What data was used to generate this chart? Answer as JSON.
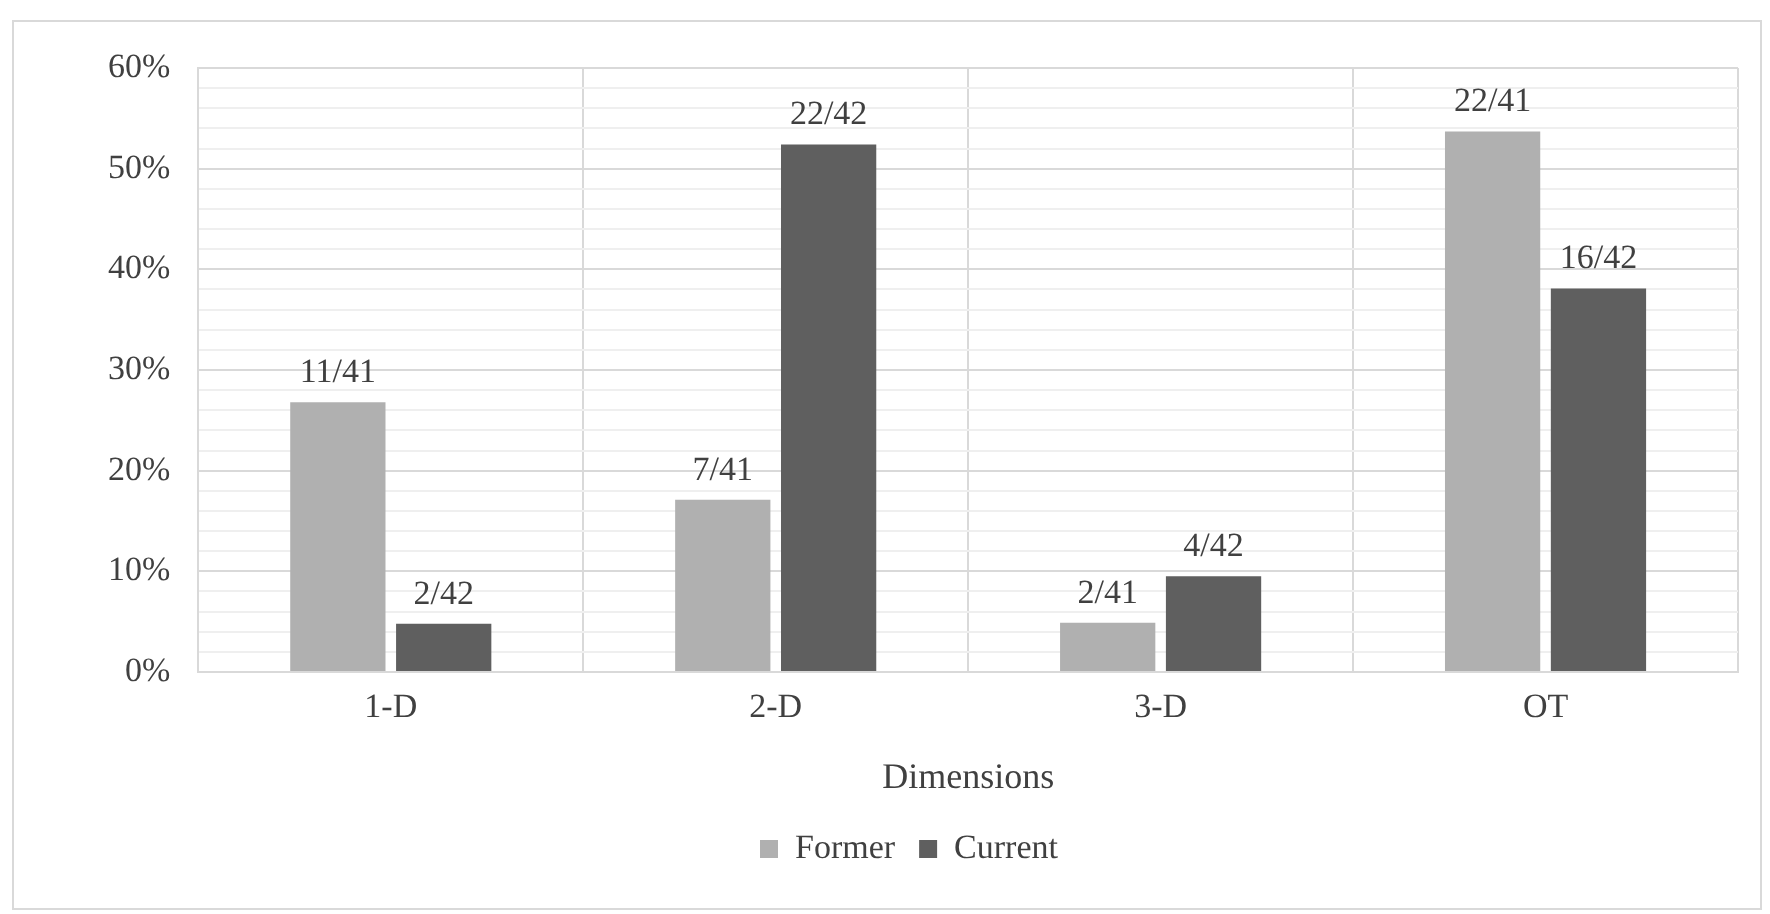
{
  "chart_data": {
    "type": "bar",
    "xlabel": "Dimensions",
    "categories": [
      "1-D",
      "2-D",
      "3-D",
      "OT"
    ],
    "series": [
      {
        "name": "Former",
        "color": "#b0b0b0",
        "values": [
          26.8,
          17.1,
          4.9,
          53.7
        ],
        "value_labels": [
          "11/41",
          "7/41",
          "2/41",
          "22/41"
        ]
      },
      {
        "name": "Current",
        "color": "#5f5f5f",
        "values": [
          4.8,
          52.4,
          9.5,
          38.1
        ],
        "value_labels": [
          "2/42",
          "22/42",
          "4/42",
          "16/42"
        ]
      }
    ],
    "ylim": [
      0,
      60
    ],
    "yticks": [
      {
        "value": 0,
        "label": "0%"
      },
      {
        "value": 2,
        "label": null
      },
      {
        "value": 4,
        "label": null
      },
      {
        "value": 6,
        "label": null
      },
      {
        "value": 8,
        "label": null
      },
      {
        "value": 10,
        "label": "10%"
      },
      {
        "value": 12,
        "label": null
      },
      {
        "value": 14,
        "label": null
      },
      {
        "value": 16,
        "label": null
      },
      {
        "value": 18,
        "label": null
      },
      {
        "value": 20,
        "label": "20%"
      },
      {
        "value": 22,
        "label": null
      },
      {
        "value": 24,
        "label": null
      },
      {
        "value": 26,
        "label": null
      },
      {
        "value": 28,
        "label": null
      },
      {
        "value": 30,
        "label": "30%"
      },
      {
        "value": 32,
        "label": null
      },
      {
        "value": 34,
        "label": null
      },
      {
        "value": 36,
        "label": null
      },
      {
        "value": 38,
        "label": null
      },
      {
        "value": 40,
        "label": "40%"
      },
      {
        "value": 42,
        "label": null
      },
      {
        "value": 44,
        "label": null
      },
      {
        "value": 46,
        "label": null
      },
      {
        "value": 48,
        "label": null
      },
      {
        "value": 50,
        "label": "50%"
      },
      {
        "value": 52,
        "label": null
      },
      {
        "value": 54,
        "label": null
      },
      {
        "value": 56,
        "label": null
      },
      {
        "value": 58,
        "label": null
      },
      {
        "value": 60,
        "label": "60%"
      }
    ],
    "grid": true,
    "legend": "bottom"
  }
}
